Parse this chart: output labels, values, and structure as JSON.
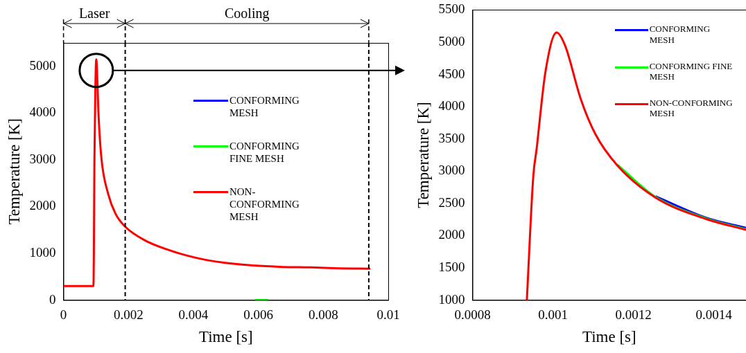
{
  "chart_data": [
    {
      "type": "line",
      "xlabel": "Time [s]",
      "ylabel": "Temperature [K]",
      "xlim": [
        0,
        0.01
      ],
      "xticks": [
        0,
        0.002,
        0.004,
        0.006,
        0.008,
        0.01
      ],
      "ylim": [
        0,
        5500
      ],
      "yticks": [
        0,
        1000,
        2000,
        3000,
        4000,
        5000
      ],
      "legend": "right",
      "annotations": [
        "Laser",
        "Cooling"
      ],
      "series": [
        {
          "name": "CONFORMING MESH",
          "color": "#0000ff"
        },
        {
          "name": "CONFORMING FINE MESH",
          "color": "#00ff00",
          "x": [
            0.0059,
            0.0063
          ],
          "values": [
            0,
            0
          ]
        },
        {
          "name": "NON-CONFORMING MESH",
          "color": "#ff0000",
          "x": [
            0,
            0.00092,
            0.000935,
            0.000951,
            0.000981,
            0.001009,
            0.00103,
            0.001069,
            0.00116,
            0.00138,
            0.0016,
            0.0019,
            0.0025,
            0.00316,
            0.00405,
            0.00494,
            0.00583,
            0.00673,
            0.00762,
            0.00851,
            0.00945
          ],
          "values": [
            300,
            300,
            1000,
            2920,
            4530,
            5150,
            4950,
            4120,
            3090,
            2260,
            1850,
            1570,
            1280,
            1090,
            910,
            800,
            740,
            710,
            700,
            680,
            670
          ]
        }
      ],
      "ref_lines": [
        {
          "axis": "x",
          "value": 0.0019,
          "line_style": "dashed"
        },
        {
          "axis": "x",
          "value": 0.0094,
          "line_style": "dashed"
        }
      ]
    },
    {
      "type": "line",
      "xlabel": "Time [s]",
      "ylabel": "Temperature [K]",
      "xlim": [
        0.0008,
        0.00148
      ],
      "xticks": [
        0.0008,
        0.001,
        0.0012,
        0.0014
      ],
      "ylim": [
        1000,
        5500
      ],
      "yticks": [
        1000,
        1500,
        2000,
        2500,
        3000,
        3500,
        4000,
        4500,
        5000,
        5500
      ],
      "legend": "top right",
      "series": [
        {
          "name": "CONFORMING MESH",
          "color": "#0000ff",
          "x": [
            0.001255,
            0.00138,
            0.00148
          ],
          "values": [
            2610,
            2280,
            2120
          ]
        },
        {
          "name": "CONFORMING FINE MESH",
          "color": "#00ff00",
          "x": [
            0.00116,
            0.001255,
            0.00138,
            0.00148
          ],
          "values": [
            3100,
            2600,
            2270,
            2100
          ]
        },
        {
          "name": "NON-CONFORMING MESH",
          "color": "#ff0000",
          "x": [
            0.000935,
            0.000951,
            0.000959,
            0.000981,
            0.001009,
            0.00103,
            0.001069,
            0.001105,
            0.00116,
            0.001255,
            0.00138,
            0.00148
          ],
          "values": [
            1000,
            2920,
            3330,
            4530,
            5150,
            4950,
            4120,
            3580,
            3090,
            2590,
            2260,
            2090
          ]
        }
      ]
    }
  ]
}
